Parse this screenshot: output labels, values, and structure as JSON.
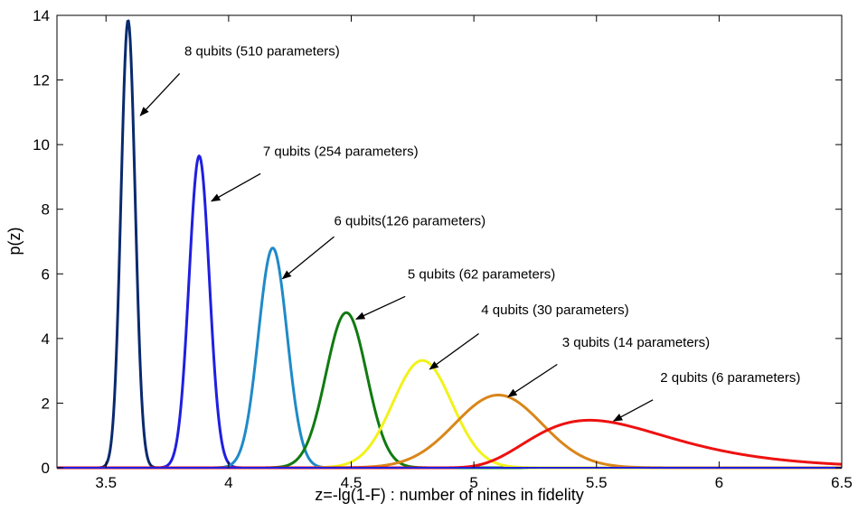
{
  "chart_data": {
    "type": "line",
    "xlabel": "z=-lg(1-F) : number of nines in fidelity",
    "ylabel": "p(z)",
    "xlim": [
      3.3,
      6.5
    ],
    "ylim": [
      0,
      14
    ],
    "xticks": [
      3.5,
      4,
      4.5,
      5,
      5.5,
      6,
      6.5
    ],
    "xtick_labels": [
      "3.5",
      "4",
      "4.5",
      "5",
      "5.5",
      "6",
      "6.5"
    ],
    "yticks": [
      0,
      2,
      4,
      6,
      8,
      10,
      12,
      14
    ],
    "ytick_labels": [
      "0",
      "2",
      "4",
      "6",
      "8",
      "10",
      "12",
      "14"
    ],
    "grid": false,
    "series": [
      {
        "name": "8 qubits (510 parameters)",
        "color": "#0a2a6e",
        "peak_x": 3.59,
        "peak_y": 13.85,
        "curve": "gaussian"
      },
      {
        "name": "7 qubits (254 parameters)",
        "color": "#1f1fe0",
        "peak_x": 3.88,
        "peak_y": 9.65,
        "curve": "gaussian"
      },
      {
        "name": "6 qubits(126 parameters)",
        "color": "#1f8ac8",
        "peak_x": 4.18,
        "peak_y": 6.8,
        "curve": "gaussian"
      },
      {
        "name": "5 qubits (62 parameters)",
        "color": "#117a11",
        "peak_x": 4.48,
        "peak_y": 4.8,
        "curve": "gaussian"
      },
      {
        "name": "4 qubits (30 parameters)",
        "color": "#f2f21a",
        "peak_x": 4.79,
        "peak_y": 3.32,
        "curve": "gaussian"
      },
      {
        "name": "3 qubits (14 parameters)",
        "color": "#d9861a",
        "peak_x": 5.1,
        "peak_y": 2.25,
        "curve": "gaussian"
      },
      {
        "name": "2 qubits (6 parameters)",
        "color": "#ee1111",
        "peak_x": 5.47,
        "peak_y": 1.47,
        "curve": "skewed"
      }
    ],
    "annotations": [
      {
        "text": "8 qubits (510 parameters)",
        "text_x": 3.82,
        "text_y": 12.75,
        "arrow_from_x": 3.8,
        "arrow_from_y": 12.2,
        "arrow_to_x": 3.64,
        "arrow_to_y": 10.9
      },
      {
        "text": "7 qubits (254 parameters)",
        "text_x": 4.14,
        "text_y": 9.65,
        "arrow_from_x": 4.13,
        "arrow_from_y": 9.1,
        "arrow_to_x": 3.93,
        "arrow_to_y": 8.25
      },
      {
        "text": "6 qubits(126 parameters)",
        "text_x": 4.43,
        "text_y": 7.5,
        "arrow_from_x": 4.43,
        "arrow_from_y": 7.15,
        "arrow_to_x": 4.22,
        "arrow_to_y": 5.85
      },
      {
        "text": "5 qubits (62 parameters)",
        "text_x": 4.73,
        "text_y": 5.85,
        "arrow_from_x": 4.72,
        "arrow_from_y": 5.3,
        "arrow_to_x": 4.52,
        "arrow_to_y": 4.6
      },
      {
        "text": "4 qubits (30 parameters)",
        "text_x": 5.03,
        "text_y": 4.75,
        "arrow_from_x": 5.02,
        "arrow_from_y": 4.15,
        "arrow_to_x": 4.82,
        "arrow_to_y": 3.05
      },
      {
        "text": "3 qubits (14 parameters)",
        "text_x": 5.36,
        "text_y": 3.75,
        "arrow_from_x": 5.34,
        "arrow_from_y": 3.2,
        "arrow_to_x": 5.14,
        "arrow_to_y": 2.2
      },
      {
        "text": "2 qubits (6 parameters)",
        "text_x": 5.76,
        "text_y": 2.65,
        "arrow_from_x": 5.73,
        "arrow_from_y": 2.1,
        "arrow_to_x": 5.57,
        "arrow_to_y": 1.45
      }
    ]
  }
}
